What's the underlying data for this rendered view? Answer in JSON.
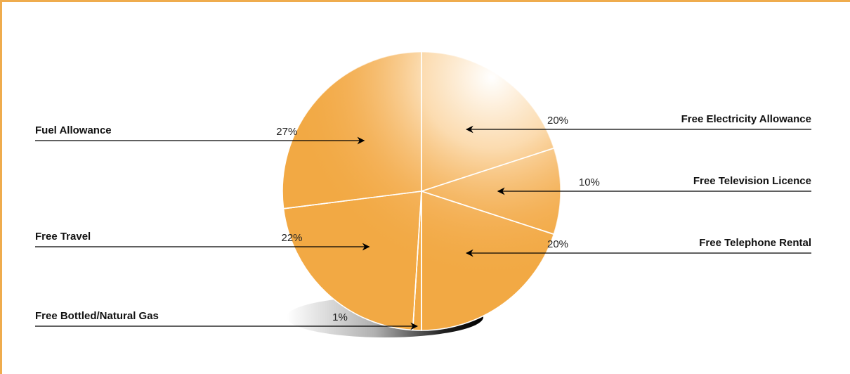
{
  "chart_data": {
    "type": "pie",
    "title": "",
    "categories": [
      "Free Electricity Allowance",
      "Free Television Licence",
      "Free Telephone Rental",
      "Free Bottled/Natural Gas",
      "Free Travel",
      "Fuel Allowance"
    ],
    "values": [
      20,
      10,
      20,
      1,
      22,
      27
    ],
    "value_labels": [
      "20%",
      "10%",
      "20%",
      "1%",
      "22%",
      "27%"
    ],
    "legend": "none",
    "colors": {
      "slice_fill": "#f2a944",
      "highlight": "#ffffff",
      "frame": "#efac4e",
      "shadow": "#000000"
    }
  }
}
